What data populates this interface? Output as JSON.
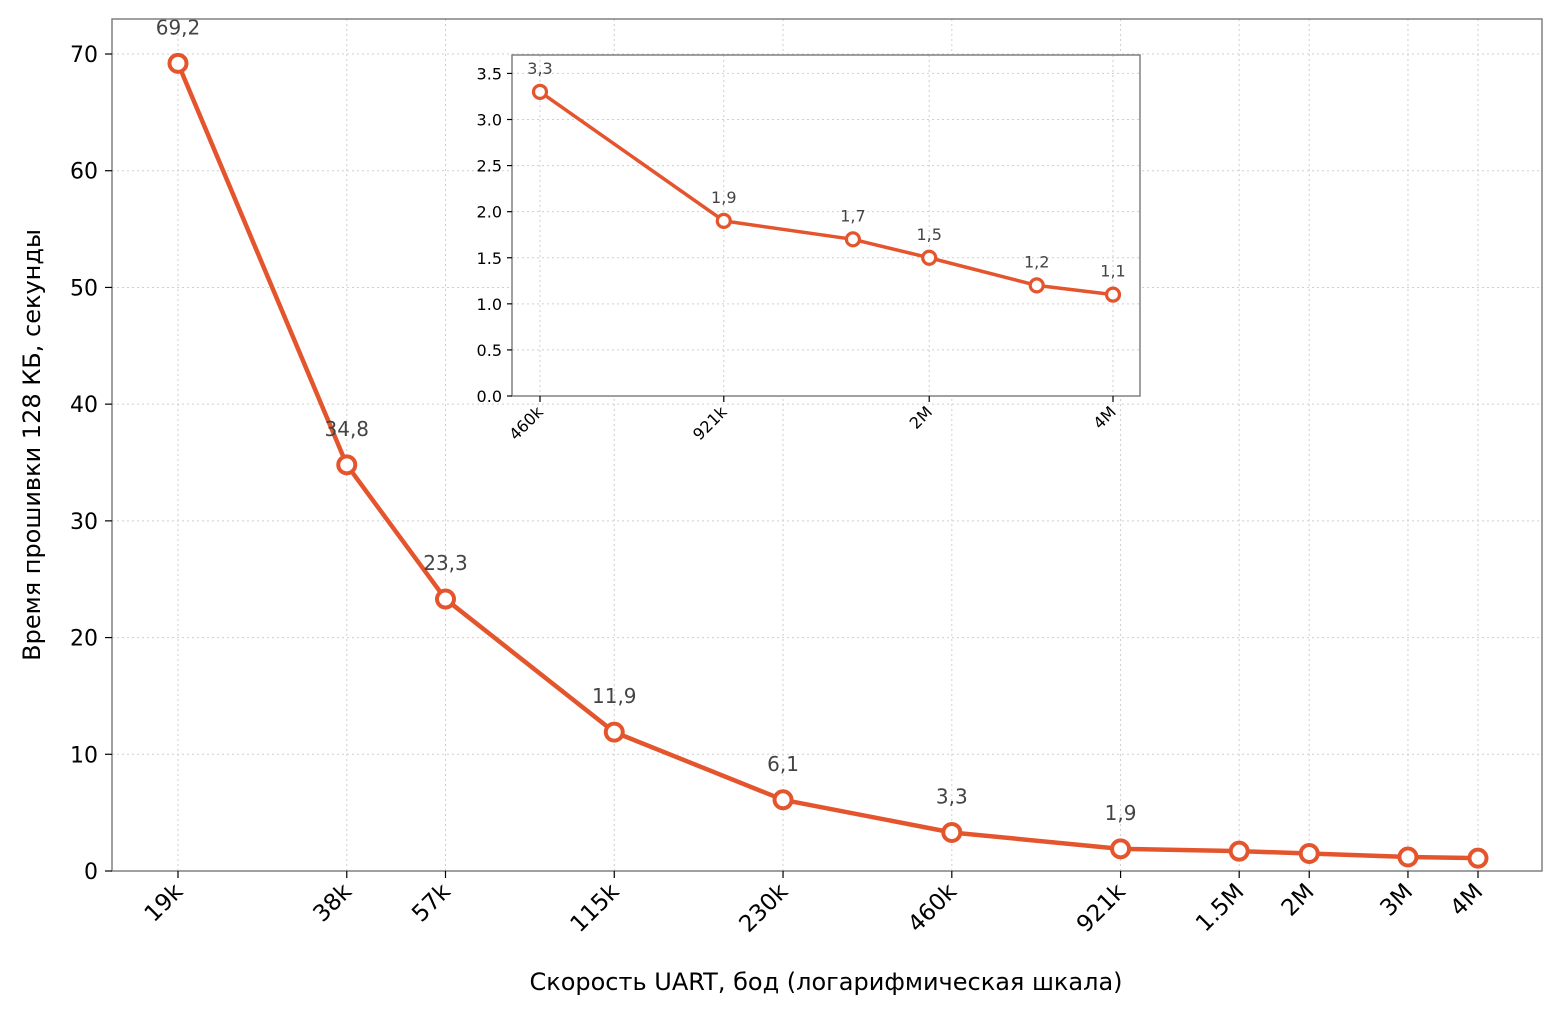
{
  "chart_data": [
    {
      "type": "line",
      "xlabel": "Скорость UART, бод (логарифмическая шкала)",
      "ylabel": "Время прошивки 128 КБ, секунды",
      "x_scale": "log",
      "x": [
        19200,
        38400,
        57600,
        115200,
        230400,
        460800,
        921600,
        1500000,
        2000000,
        3000000,
        4000000
      ],
      "x_tick_labels": [
        "19k",
        "38k",
        "57k",
        "115k",
        "230k",
        "460k",
        "921k",
        "1.5M",
        "2M",
        "3M",
        "4M"
      ],
      "values": [
        69.2,
        34.8,
        23.3,
        11.9,
        6.1,
        3.3,
        1.9,
        1.7,
        1.5,
        1.2,
        1.1
      ],
      "data_labels": [
        "69,2",
        "34,8",
        "23,3",
        "11,9",
        "6,1",
        "3,3",
        "1,9",
        "",
        "",
        "",
        ""
      ],
      "ylim": [
        0,
        73
      ],
      "yticks": [
        0,
        10,
        20,
        30,
        40,
        50,
        60,
        70
      ],
      "grid": true,
      "color": "#e5552d"
    },
    {
      "type": "line",
      "inset": true,
      "x_scale": "log",
      "x": [
        460800,
        921600,
        1500000,
        2000000,
        3000000,
        4000000
      ],
      "x_ticks": [
        460800,
        921600,
        2000000,
        4000000
      ],
      "x_tick_labels": [
        "460k",
        "921k",
        "2M",
        "4M"
      ],
      "values": [
        3.3,
        1.9,
        1.7,
        1.5,
        1.2,
        1.1
      ],
      "data_labels": [
        "3,3",
        "1,9",
        "1,7",
        "1,5",
        "1,2",
        "1,1"
      ],
      "ylim": [
        0,
        3.7
      ],
      "yticks": [
        0.0,
        0.5,
        1.0,
        1.5,
        2.0,
        2.5,
        3.0,
        3.5
      ],
      "ytick_labels": [
        "0.0",
        "0.5",
        "1.0",
        "1.5",
        "2.0",
        "2.5",
        "3.0",
        "3.5"
      ],
      "grid": true,
      "color": "#e5552d"
    }
  ]
}
